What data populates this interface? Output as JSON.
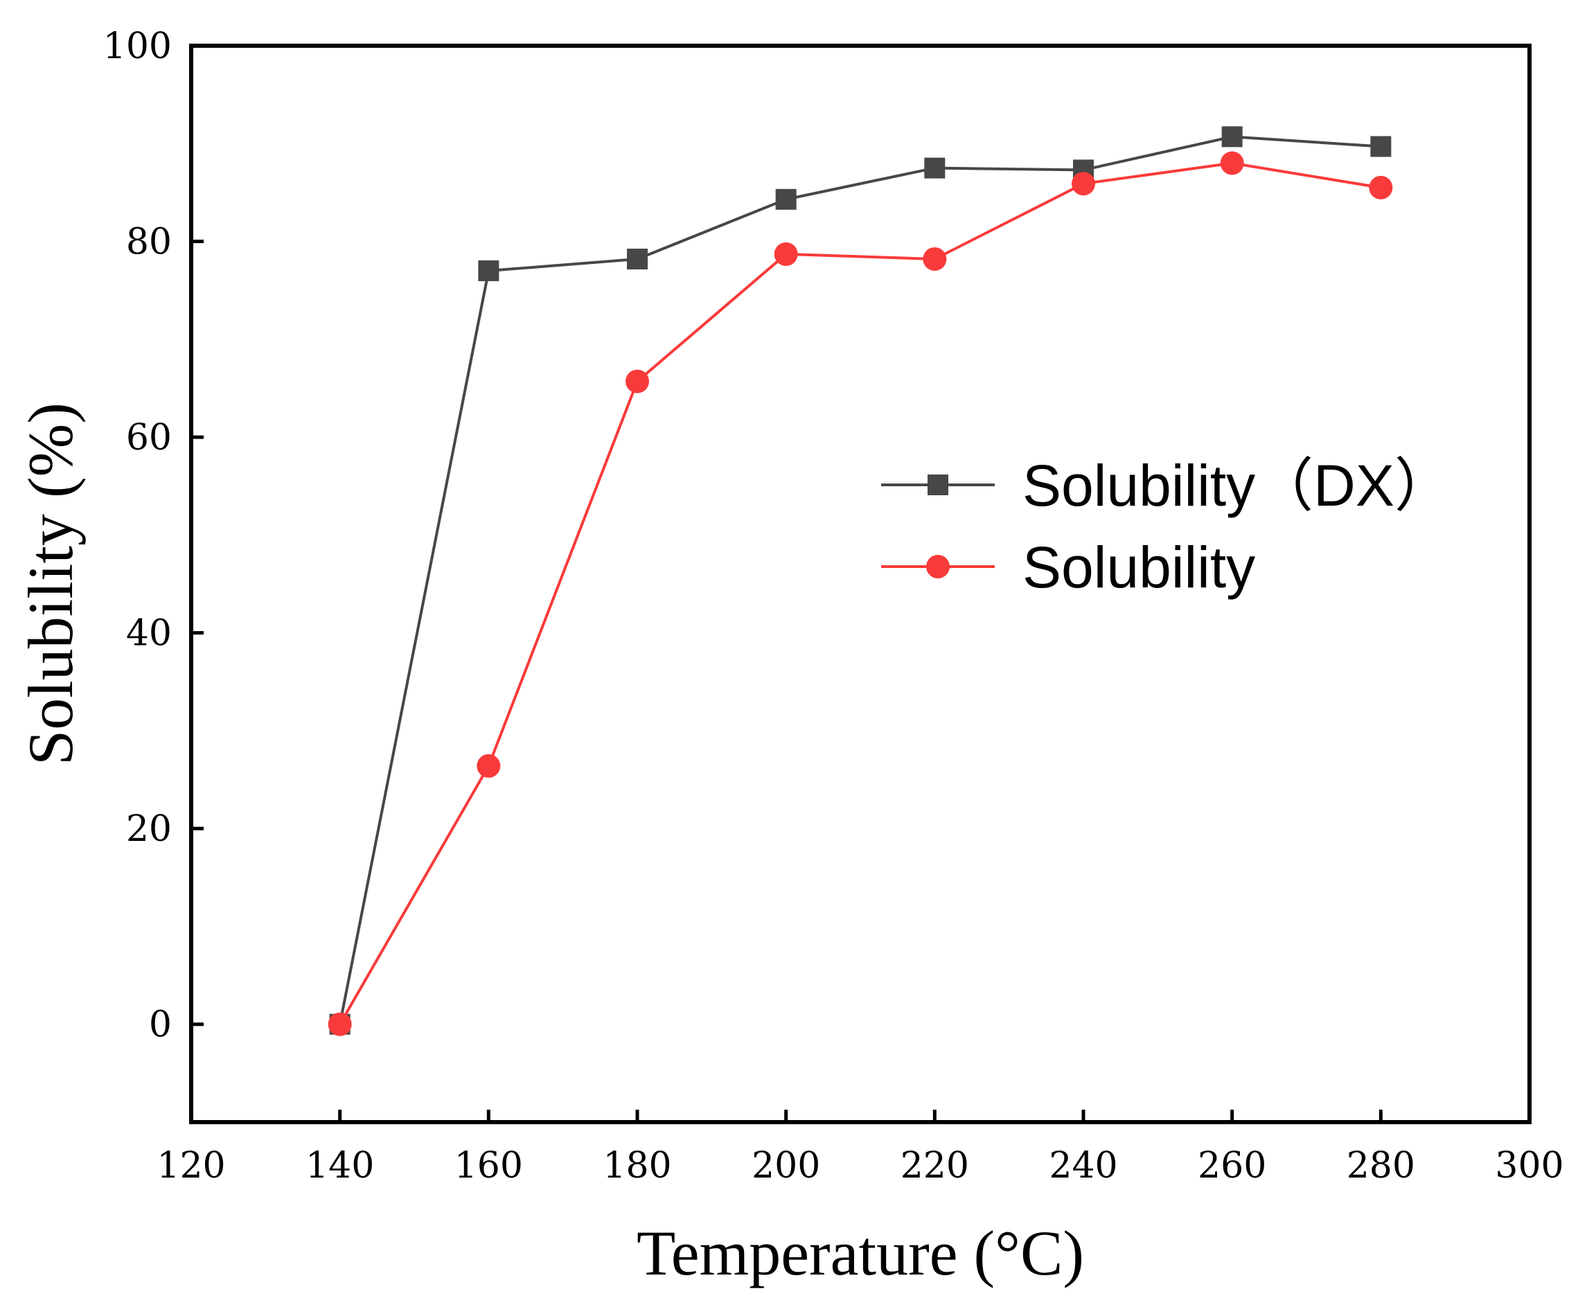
{
  "chart_data": {
    "type": "line",
    "title": "",
    "xlabel": "Temperature (°C)",
    "ylabel": "Solubility (%)",
    "xlim": [
      120,
      300
    ],
    "ylim": [
      -10,
      100
    ],
    "xticks": [
      120,
      140,
      160,
      180,
      200,
      220,
      240,
      260,
      280,
      300
    ],
    "yticks": [
      0,
      20,
      40,
      60,
      80,
      100
    ],
    "x": [
      140,
      160,
      180,
      200,
      220,
      240,
      260,
      280
    ],
    "series": [
      {
        "name": "Solubility（DX）",
        "marker": "square",
        "color": "#474747",
        "values": [
          0,
          77.0,
          78.2,
          84.3,
          87.5,
          87.3,
          90.7,
          89.7
        ]
      },
      {
        "name": "Solubility",
        "marker": "circle",
        "color": "#f93a3a",
        "values": [
          0,
          26.4,
          65.7,
          78.7,
          78.2,
          85.9,
          88.0,
          85.5
        ]
      }
    ],
    "legend_position": "center-right",
    "grid": false
  }
}
